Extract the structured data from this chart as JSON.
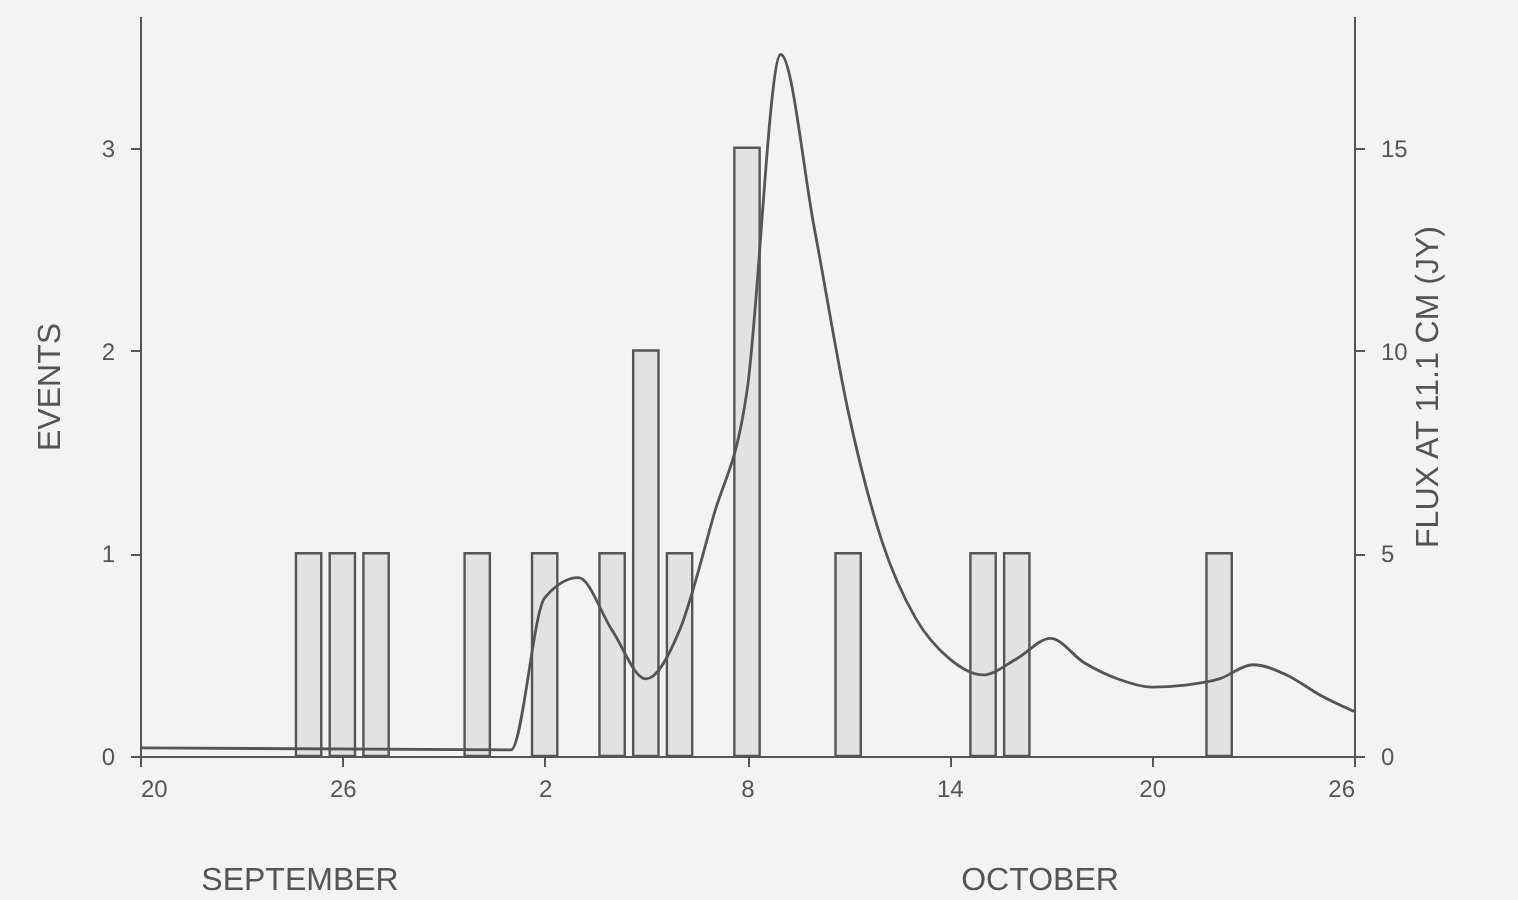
{
  "chart_data": {
    "type": "bar",
    "ylabel": "EVENTS",
    "y2label": "FLUX AT 11.1 CM (JY)",
    "annotations": [
      "SEPTEMBER",
      "OCTOBER"
    ],
    "xlim": [
      "--09-20",
      "--10-26"
    ],
    "xticks": [
      {
        "value": "--09-20",
        "label": "20"
      },
      {
        "value": "--09-26",
        "label": "26"
      },
      {
        "value": "--10-02",
        "label": "2"
      },
      {
        "value": "--10-08",
        "label": "8"
      },
      {
        "value": "--10-14",
        "label": "14"
      },
      {
        "value": "--10-20",
        "label": "20"
      },
      {
        "value": "--10-26",
        "label": "26"
      }
    ],
    "ylim": [
      0,
      3.65
    ],
    "yticks": [
      0,
      1,
      2,
      3
    ],
    "y2lim": [
      0,
      18.25
    ],
    "y2ticks": [
      0,
      5,
      10,
      15
    ],
    "grid": false,
    "series": [
      {
        "color": "#e2e2e2",
        "x": [
          "--09-25",
          "--09-26",
          "--09-27",
          "--09-30",
          "--10-02",
          "--10-04",
          "--10-05",
          "--10-06",
          "--10-08",
          "--10-11",
          "--10-15",
          "--10-16",
          "--10-22"
        ],
        "values": [
          1,
          1,
          1,
          1,
          1,
          1,
          2,
          1,
          3,
          1,
          1,
          1,
          1
        ]
      },
      {
        "type": "line",
        "axis": "y2",
        "color": "#555555",
        "marker": "none",
        "line_style": "solid",
        "x": [
          "--09-20",
          "--10-01",
          "--10-02",
          "--10-03",
          "--10-04",
          "--10-05",
          "--10-06",
          "--10-07",
          "--10-08",
          "--10-09",
          "--10-10",
          "--10-11",
          "--10-12",
          "--10-13",
          "--10-14",
          "--10-15",
          "--10-16",
          "--10-17",
          "--10-18",
          "--10-19",
          "--10-20",
          "--10-21",
          "--10-22",
          "--10-23",
          "--10-24",
          "--10-25",
          "--10-26"
        ],
        "values": [
          0.2,
          0.15,
          3.9,
          4.4,
          3.1,
          1.9,
          3.1,
          5.9,
          9.0,
          17.3,
          13.0,
          8.5,
          5.3,
          3.4,
          2.4,
          2.0,
          2.4,
          2.9,
          2.3,
          1.9,
          1.7,
          1.75,
          1.9,
          2.25,
          2.0,
          1.5,
          1.1
        ]
      }
    ]
  }
}
